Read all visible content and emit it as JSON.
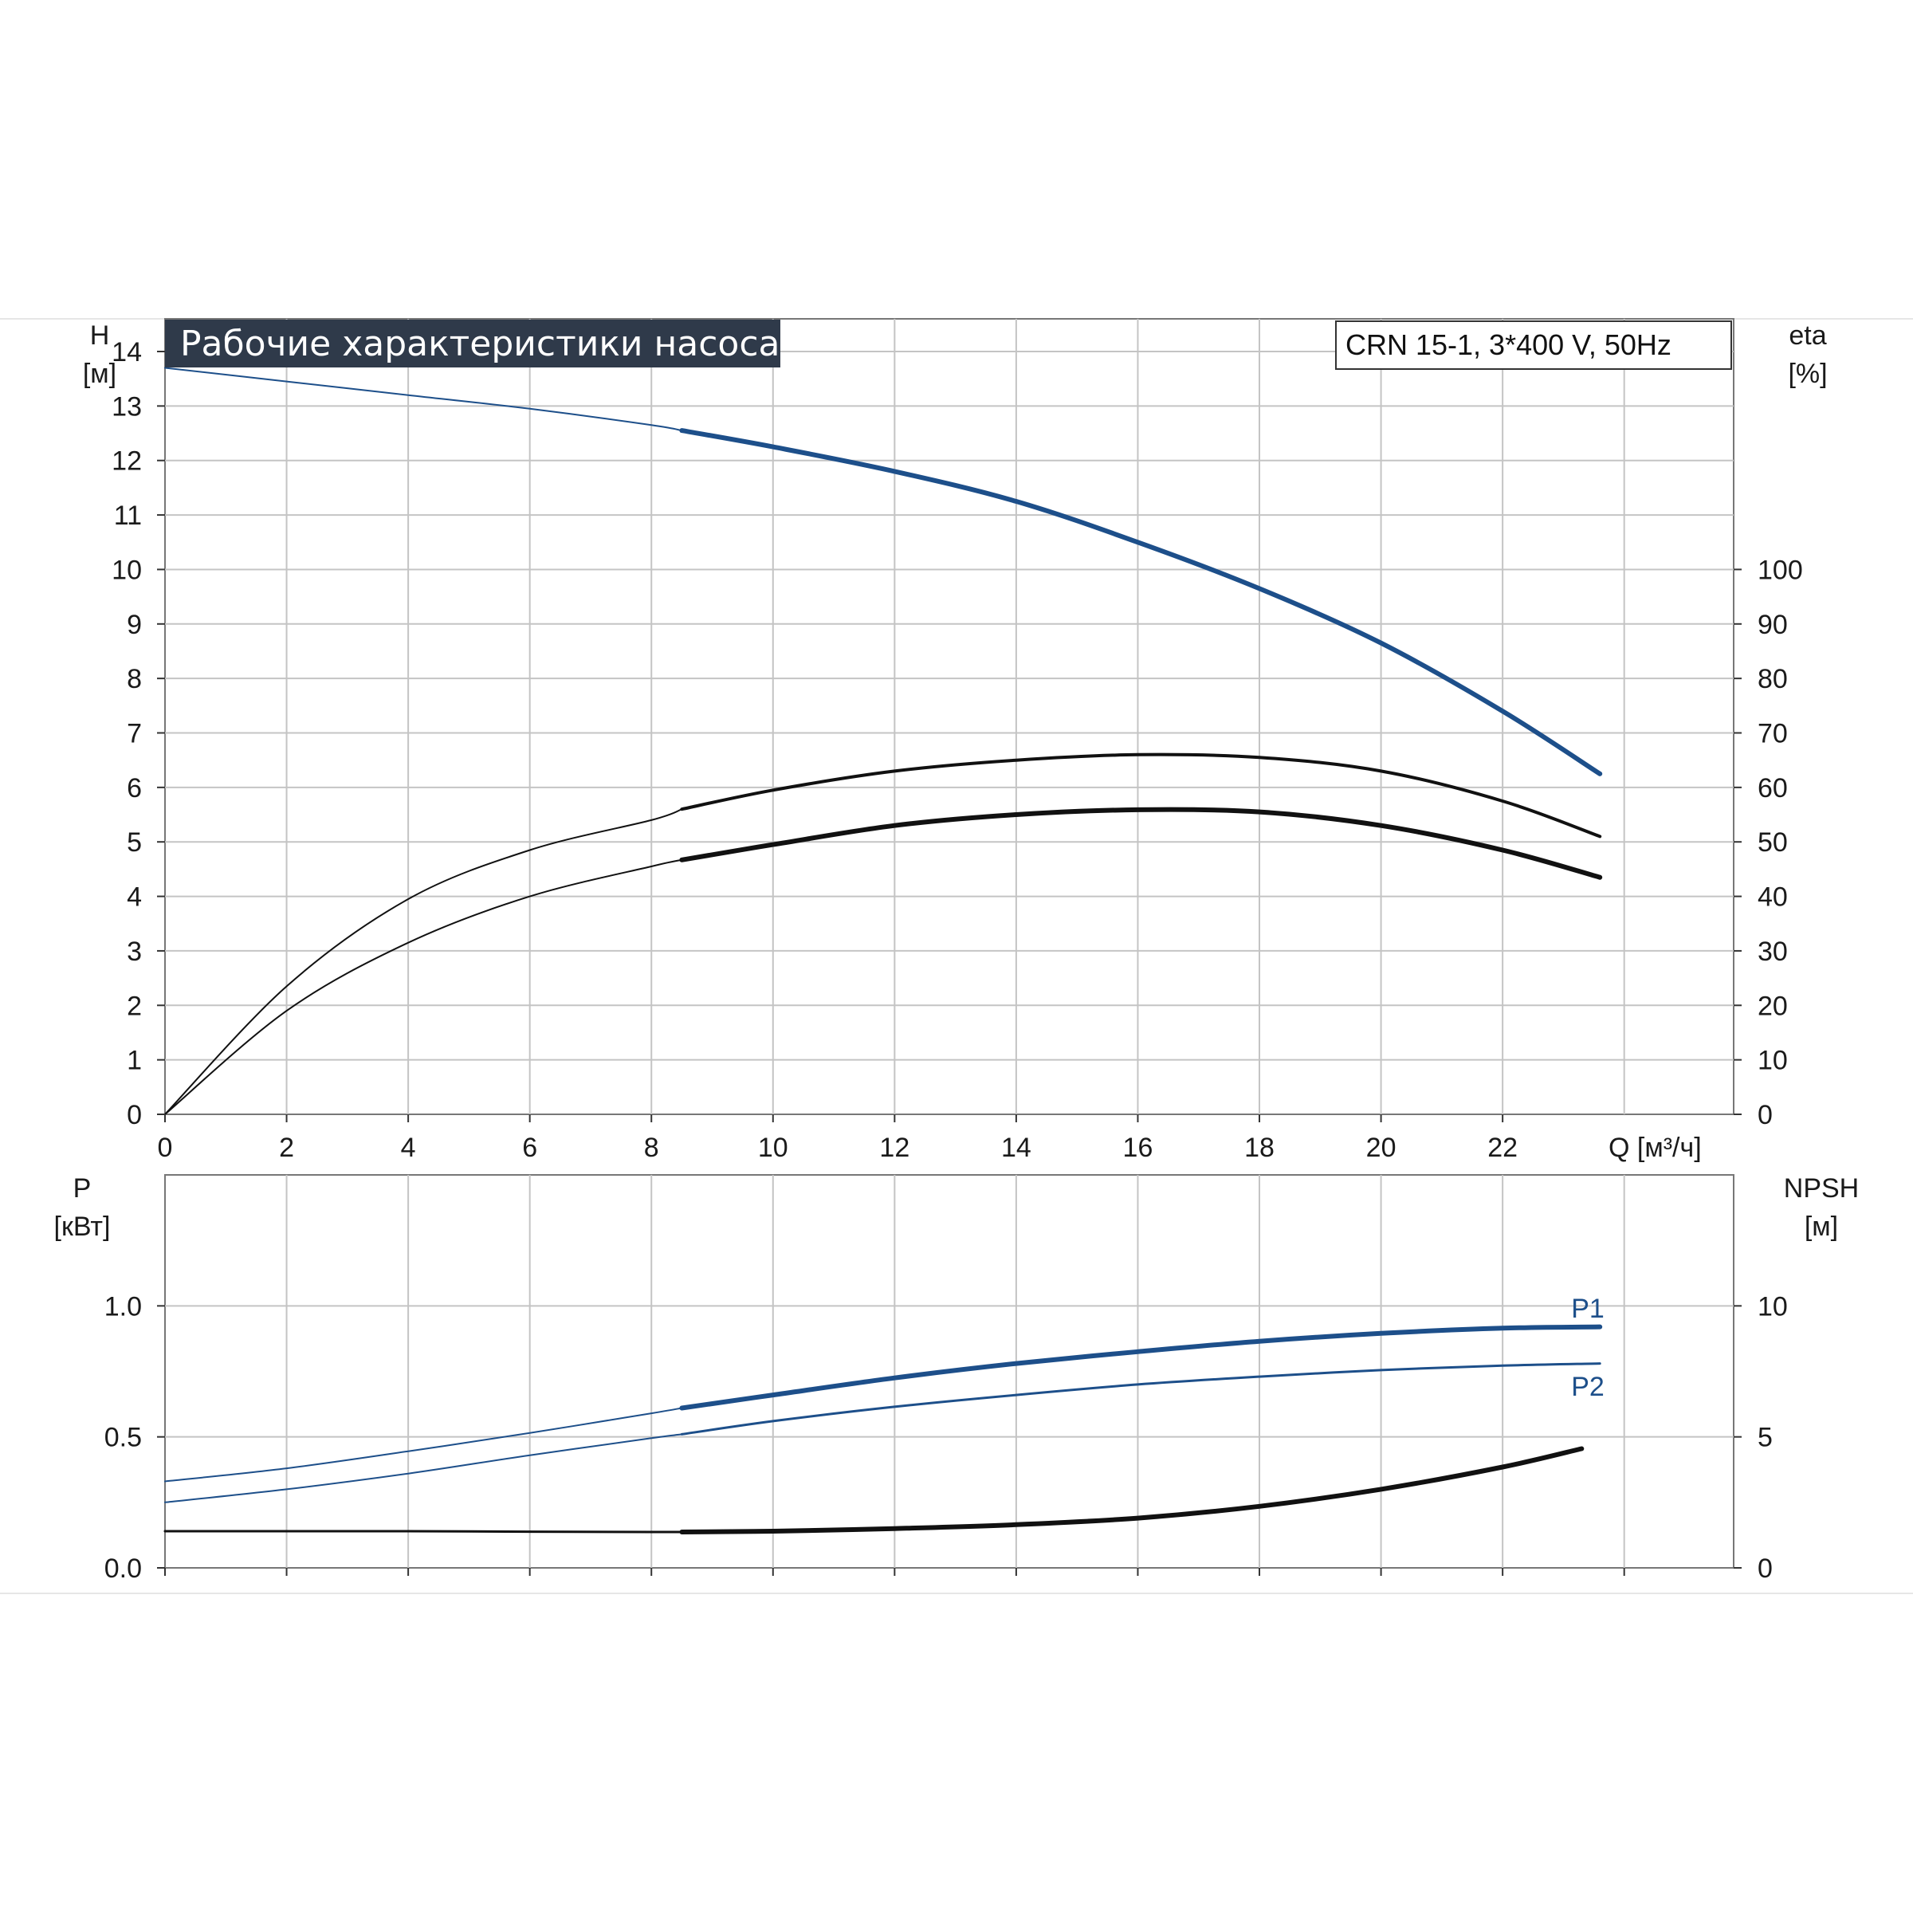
{
  "chart_data": [
    {
      "type": "line",
      "title": "Рабочие характеристики насоса",
      "model": "CRN 15-1, 3*400 V, 50Hz",
      "x_label": "Q [м³/ч]",
      "x_ticks": [
        "0",
        "2",
        "4",
        "6",
        "8",
        "10",
        "12",
        "14",
        "16",
        "18",
        "20",
        "22"
      ],
      "xlim": [
        0,
        25.8
      ],
      "y_left_label": [
        "H",
        "[м]"
      ],
      "y_left_ticks": [
        "0",
        "1",
        "2",
        "3",
        "4",
        "5",
        "6",
        "7",
        "8",
        "9",
        "10",
        "11",
        "12",
        "13",
        "14"
      ],
      "ylim_left": [
        0,
        14.6
      ],
      "y_right_label": [
        "eta",
        "[%]"
      ],
      "y_right_ticks": [
        "0",
        "10",
        "20",
        "30",
        "40",
        "50",
        "60",
        "70",
        "80",
        "90",
        "100"
      ],
      "ylim_right": [
        0,
        146
      ],
      "grid": true,
      "colors": {
        "head": "#1d4f8a",
        "eta": "#111111",
        "title_bg": "#2f3a4a"
      },
      "series": [
        {
          "axis": "left",
          "x": [
            0,
            2,
            4,
            6,
            8,
            8.5,
            10,
            12,
            14,
            16,
            18,
            20,
            22,
            23.6
          ],
          "values": [
            13.7,
            13.45,
            13.2,
            12.95,
            12.65,
            12.55,
            12.25,
            11.8,
            11.25,
            10.5,
            9.65,
            8.65,
            7.4,
            6.25
          ]
        },
        {
          "axis": "right",
          "x": [
            0,
            2,
            4,
            6,
            8,
            8.5,
            10,
            12,
            14,
            16,
            18,
            20,
            22,
            23.6
          ],
          "values": [
            0,
            23.5,
            39.5,
            48.5,
            54,
            56,
            59.5,
            63,
            65,
            66,
            65.5,
            63,
            57.5,
            51
          ]
        },
        {
          "axis": "right",
          "x": [
            0,
            2,
            4,
            6,
            8,
            8.5,
            10,
            12,
            14,
            16,
            18,
            20,
            22,
            23.6
          ],
          "values": [
            0,
            19,
            31.5,
            40,
            45.5,
            46.7,
            49.5,
            53,
            55,
            55.9,
            55.5,
            53,
            48.5,
            43.5
          ]
        }
      ]
    },
    {
      "type": "line",
      "x_ticks": [
        "0",
        "2",
        "4",
        "6",
        "8",
        "10",
        "12",
        "14",
        "16",
        "18",
        "20",
        "22"
      ],
      "xlim": [
        0,
        25.8
      ],
      "y_left_label": [
        "P",
        "[кВт]"
      ],
      "y_left_ticks": [
        "0.0",
        "0.5",
        "1.0"
      ],
      "ylim_left": [
        0,
        1.5
      ],
      "y_right_label": [
        "NPSH",
        "[м]"
      ],
      "y_right_ticks": [
        "0",
        "5",
        "10"
      ],
      "ylim_right": [
        0,
        15
      ],
      "grid": true,
      "colors": {
        "power": "#1d4f8a",
        "npsh": "#111111"
      },
      "series": [
        {
          "name": "P1",
          "axis": "left",
          "x": [
            0,
            2,
            4,
            6,
            8,
            8.5,
            10,
            12,
            14,
            16,
            18,
            20,
            22,
            23.6
          ],
          "values": [
            0.33,
            0.38,
            0.445,
            0.515,
            0.59,
            0.61,
            0.66,
            0.725,
            0.78,
            0.825,
            0.865,
            0.895,
            0.915,
            0.92
          ]
        },
        {
          "name": "P2",
          "axis": "left",
          "x": [
            0,
            2,
            4,
            6,
            8,
            8.5,
            10,
            12,
            14,
            16,
            18,
            20,
            22,
            23.6
          ],
          "values": [
            0.25,
            0.3,
            0.36,
            0.43,
            0.495,
            0.51,
            0.56,
            0.615,
            0.66,
            0.7,
            0.73,
            0.755,
            0.772,
            0.78
          ]
        },
        {
          "axis": "right",
          "x": [
            0,
            2,
            4,
            6,
            8,
            8.5,
            10,
            12,
            14,
            16,
            18,
            20,
            22,
            23.3
          ],
          "values": [
            1.4,
            1.4,
            1.4,
            1.38,
            1.37,
            1.37,
            1.4,
            1.5,
            1.65,
            1.9,
            2.35,
            3.0,
            3.85,
            4.55
          ]
        }
      ]
    }
  ]
}
